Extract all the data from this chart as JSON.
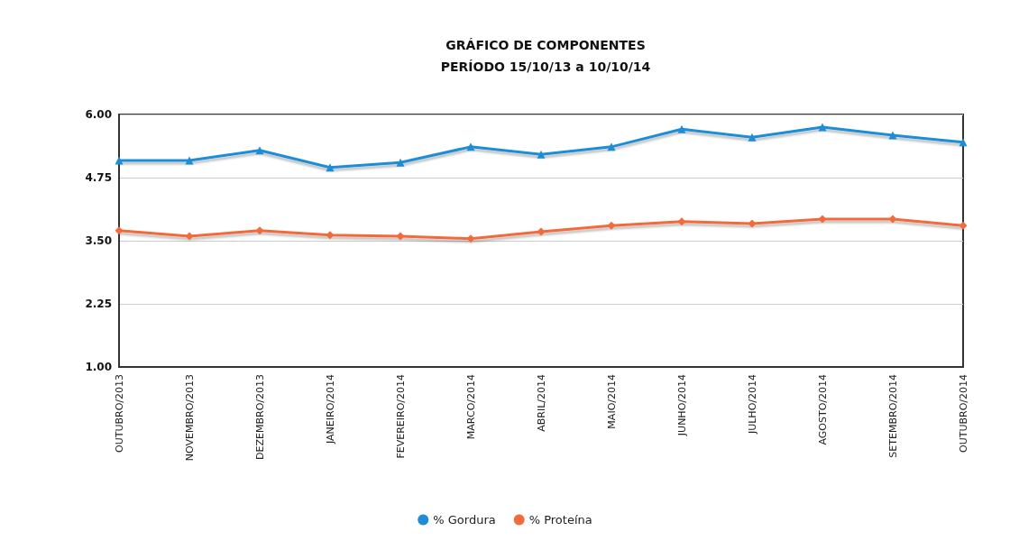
{
  "chart_data": {
    "type": "line",
    "title": "GRÁFICO DE COMPONENTES",
    "subtitle": "PERÍODO 15/10/13 a 10/10/14",
    "categories": [
      "OUTUBRO/2013",
      "NOVEMBRO/2013",
      "DEZEMBRO/2013",
      "JANEIRO/2014",
      "FEVEREIRO/2014",
      "MARCO/2014",
      "ABRIL/2014",
      "MAIO/2014",
      "JUNHO/2014",
      "JULHO/2014",
      "AGOSTO/2014",
      "SETEMBRO/2014",
      "OUTUBRO/2014"
    ],
    "series": [
      {
        "name": "% Gordura",
        "color": "#1f8dd6",
        "marker": "triangle",
        "values": [
          5.09,
          5.09,
          5.29,
          4.95,
          5.05,
          5.36,
          5.21,
          5.36,
          5.71,
          5.55,
          5.75,
          5.59,
          5.45
        ]
      },
      {
        "name": "% Proteína",
        "color": "#f26b3a",
        "marker": "diamond",
        "values": [
          3.7,
          3.59,
          3.7,
          3.61,
          3.59,
          3.54,
          3.68,
          3.8,
          3.88,
          3.84,
          3.93,
          3.93,
          3.8
        ]
      }
    ],
    "ylim": [
      1,
      6
    ],
    "yticks": [
      {
        "value": 1,
        "label": "1.00"
      },
      {
        "value": 2.25,
        "label": "2.25"
      },
      {
        "value": 3.5,
        "label": "3.50"
      },
      {
        "value": 4.75,
        "label": "4.75"
      },
      {
        "value": 6,
        "label": "6.00"
      }
    ],
    "grid": "y",
    "legend": "bottom",
    "line_style": "solid"
  }
}
